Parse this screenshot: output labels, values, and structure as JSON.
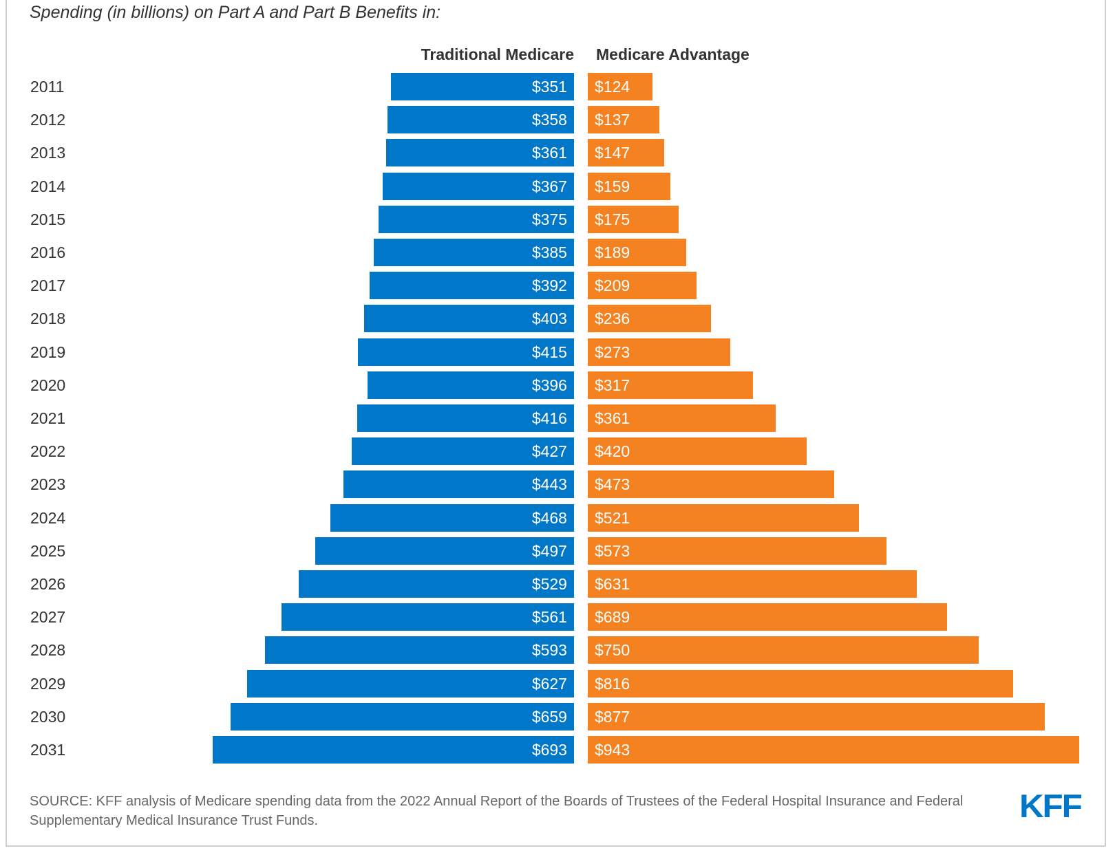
{
  "chart_data": {
    "type": "bar",
    "orientation": "horizontal-butterfly",
    "title": "Spending (in billions) on Part A and Part B Benefits in:",
    "categories": [
      "2011",
      "2012",
      "2013",
      "2014",
      "2015",
      "2016",
      "2017",
      "2018",
      "2019",
      "2020",
      "2021",
      "2022",
      "2023",
      "2024",
      "2025",
      "2026",
      "2027",
      "2028",
      "2029",
      "2030",
      "2031"
    ],
    "series": [
      {
        "name": "Traditional Medicare",
        "color": "#0077c8",
        "values": [
          351,
          358,
          361,
          367,
          375,
          385,
          392,
          403,
          415,
          396,
          416,
          427,
          443,
          468,
          497,
          529,
          561,
          593,
          627,
          659,
          693
        ]
      },
      {
        "name": "Medicare Advantage",
        "color": "#f58220",
        "values": [
          124,
          137,
          147,
          159,
          175,
          189,
          209,
          236,
          273,
          317,
          361,
          420,
          473,
          521,
          573,
          631,
          689,
          750,
          816,
          877,
          943
        ]
      }
    ],
    "value_prefix": "$",
    "xlabel": "",
    "ylabel": "",
    "grid": false
  },
  "footer": {
    "source": "SOURCE: KFF analysis of Medicare spending data from the 2022 Annual Report of the Boards of Trustees of the Federal Hospital Insurance and Federal Supplementary Medical Insurance Trust Funds.",
    "logo": "KFF"
  }
}
